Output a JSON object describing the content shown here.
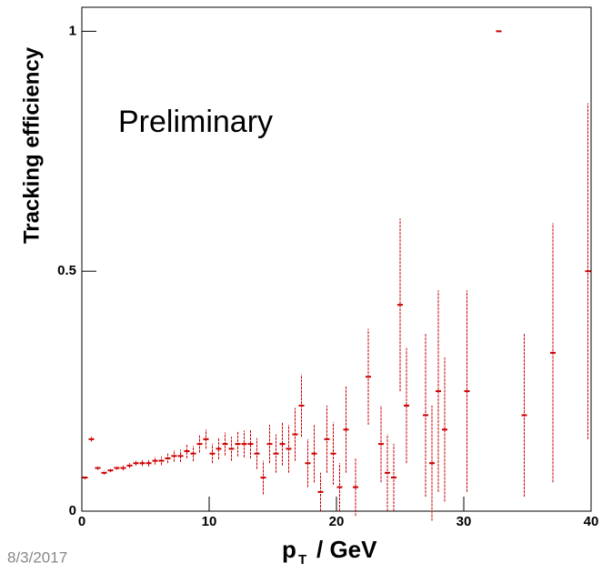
{
  "chart_data": {
    "type": "errorbar",
    "y_label": "Tracking efficiency",
    "x_label": "p",
    "x_label_sub": "T",
    "x_label_unit": "/ GeV",
    "annotation": "Preliminary",
    "footer": "8/3/2017",
    "color": "#cc0000",
    "xlim": [
      0,
      40
    ],
    "xticks": [
      0,
      10,
      20,
      30,
      40
    ],
    "ylim": [
      0,
      1.05
    ],
    "yticks": [
      0,
      0.5,
      1
    ],
    "x": [
      0.25,
      0.75,
      1.25,
      1.75,
      2.25,
      2.75,
      3.25,
      3.75,
      4.25,
      4.75,
      5.25,
      5.75,
      6.25,
      6.75,
      7.25,
      7.75,
      8.25,
      8.75,
      9.25,
      9.75,
      10.25,
      10.75,
      11.25,
      11.75,
      12.25,
      12.75,
      13.25,
      13.75,
      14.25,
      14.75,
      15.25,
      15.75,
      16.25,
      16.75,
      17.25,
      17.75,
      18.25,
      18.75,
      19.25,
      19.75,
      20.25,
      20.75,
      21.5,
      22.5,
      23.5,
      24,
      24.5,
      25,
      25.5,
      27,
      27.5,
      28,
      28.5,
      30.25,
      32.75,
      34.75,
      37,
      39.75
    ],
    "values": [
      0.07,
      0.15,
      0.09,
      0.08,
      0.085,
      0.09,
      0.09,
      0.095,
      0.1,
      0.1,
      0.1,
      0.105,
      0.105,
      0.11,
      0.115,
      0.115,
      0.125,
      0.12,
      0.14,
      0.15,
      0.12,
      0.13,
      0.14,
      0.13,
      0.14,
      0.14,
      0.14,
      0.12,
      0.07,
      0.14,
      0.12,
      0.14,
      0.13,
      0.16,
      0.22,
      0.1,
      0.12,
      0.04,
      0.15,
      0.12,
      0.05,
      0.17,
      0.05,
      0.28,
      0.14,
      0.08,
      0.07,
      0.43,
      0.22,
      0.2,
      0.1,
      0.25,
      0.17,
      0.25,
      1.0,
      0.2,
      0.33,
      0.5
    ],
    "errors": [
      0.004,
      0.005,
      0.004,
      0.004,
      0.004,
      0.004,
      0.005,
      0.005,
      0.005,
      0.006,
      0.007,
      0.008,
      0.009,
      0.01,
      0.012,
      0.013,
      0.015,
      0.016,
      0.018,
      0.02,
      0.02,
      0.022,
      0.024,
      0.025,
      0.026,
      0.028,
      0.03,
      0.032,
      0.035,
      0.04,
      0.04,
      0.045,
      0.05,
      0.055,
      0.065,
      0.05,
      0.06,
      0.04,
      0.07,
      0.065,
      0.05,
      0.09,
      0.06,
      0.1,
      0.08,
      0.08,
      0.07,
      0.18,
      0.12,
      0.17,
      0.12,
      0.21,
      0.15,
      0.21,
      0.0,
      0.17,
      0.27,
      0.35
    ]
  }
}
